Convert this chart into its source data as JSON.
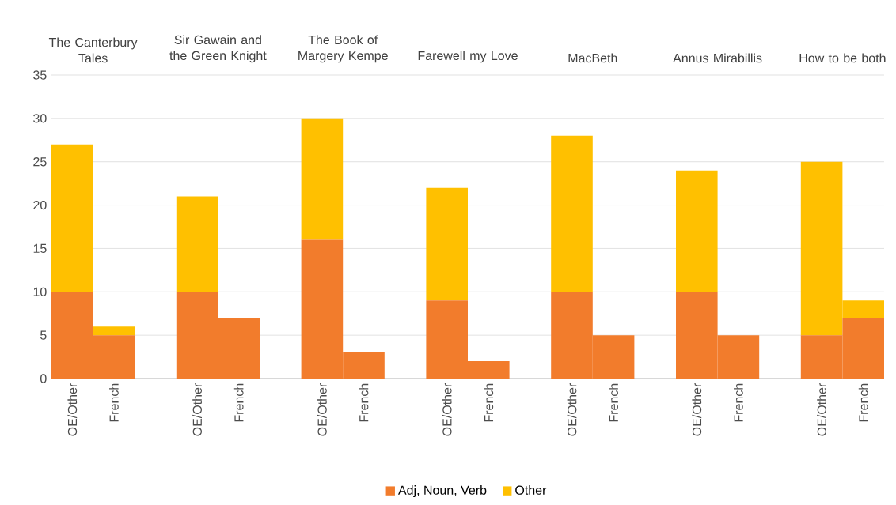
{
  "chart_data": {
    "type": "bar",
    "stacked": true,
    "categories": [
      "OE/Other",
      "French",
      "OE/Other",
      "French",
      "OE/Other",
      "French",
      "OE/Other",
      "French",
      "OE/Other",
      "French",
      "OE/Other",
      "French",
      "OE/Other",
      "French"
    ],
    "annotations": [
      "The Canterbury Tales",
      "Sir Gawain and the Green Knight",
      "The Book of Margery Kempe",
      "Farewell my Love",
      "MacBeth",
      "Annus Mirabillis",
      "How to be both"
    ],
    "series": [
      {
        "name": "Adj, Noun, Verb",
        "color": "#f27c2c",
        "values": [
          10,
          5,
          10,
          7,
          16,
          3,
          9,
          2,
          10,
          5,
          10,
          5,
          5,
          7
        ]
      },
      {
        "name": "Other",
        "color": "#ffc000",
        "values": [
          17,
          1,
          11,
          0,
          14,
          0,
          13,
          0,
          18,
          0,
          14,
          0,
          20,
          2
        ]
      }
    ],
    "ylim": [
      0,
      35
    ],
    "yticks": [
      0,
      5,
      10,
      15,
      20,
      25,
      30,
      35
    ],
    "grid": "y",
    "legend": "bottom"
  }
}
